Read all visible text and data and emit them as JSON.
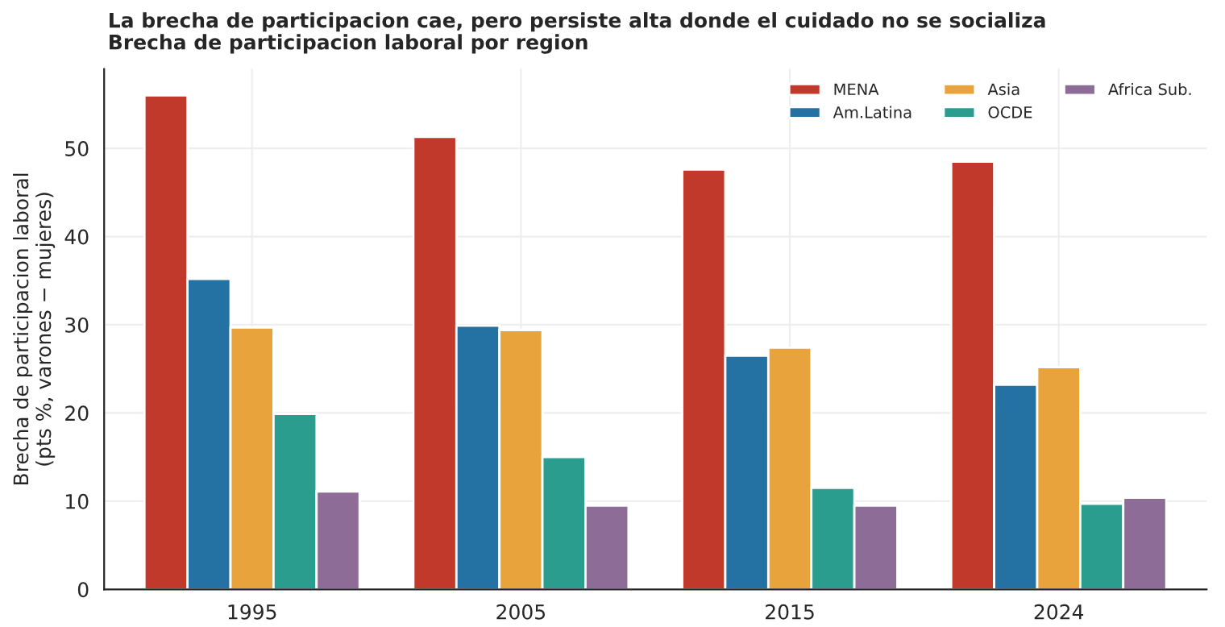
{
  "chart_data": {
    "type": "bar",
    "title": "La brecha de participacion cae, pero persiste alta donde el cuidado no se socializa",
    "subtitle": "Brecha de participacion laboral por region",
    "ylabel": "Brecha de participacion laboral\n(pts %, varones − mujeres)",
    "categories": [
      "1995",
      "2005",
      "2015",
      "2024"
    ],
    "series": [
      {
        "name": "MENA",
        "color": "#c0392b",
        "values": [
          56.0,
          51.3,
          47.6,
          48.5
        ]
      },
      {
        "name": "Am.Latina",
        "color": "#2471a3",
        "values": [
          35.2,
          29.9,
          26.5,
          23.2
        ]
      },
      {
        "name": "Asia",
        "color": "#e8a33d",
        "values": [
          29.7,
          29.4,
          27.4,
          25.2
        ]
      },
      {
        "name": "OCDE",
        "color": "#2a9d8f",
        "values": [
          19.9,
          15.0,
          11.5,
          9.7
        ]
      },
      {
        "name": "Africa Sub.",
        "color": "#8e6c98",
        "values": [
          11.1,
          9.5,
          9.5,
          10.4
        ]
      }
    ],
    "ylim": [
      0,
      59
    ],
    "yticks": [
      0,
      10,
      20,
      30,
      40,
      50
    ],
    "grid": true,
    "legend": "top right"
  }
}
